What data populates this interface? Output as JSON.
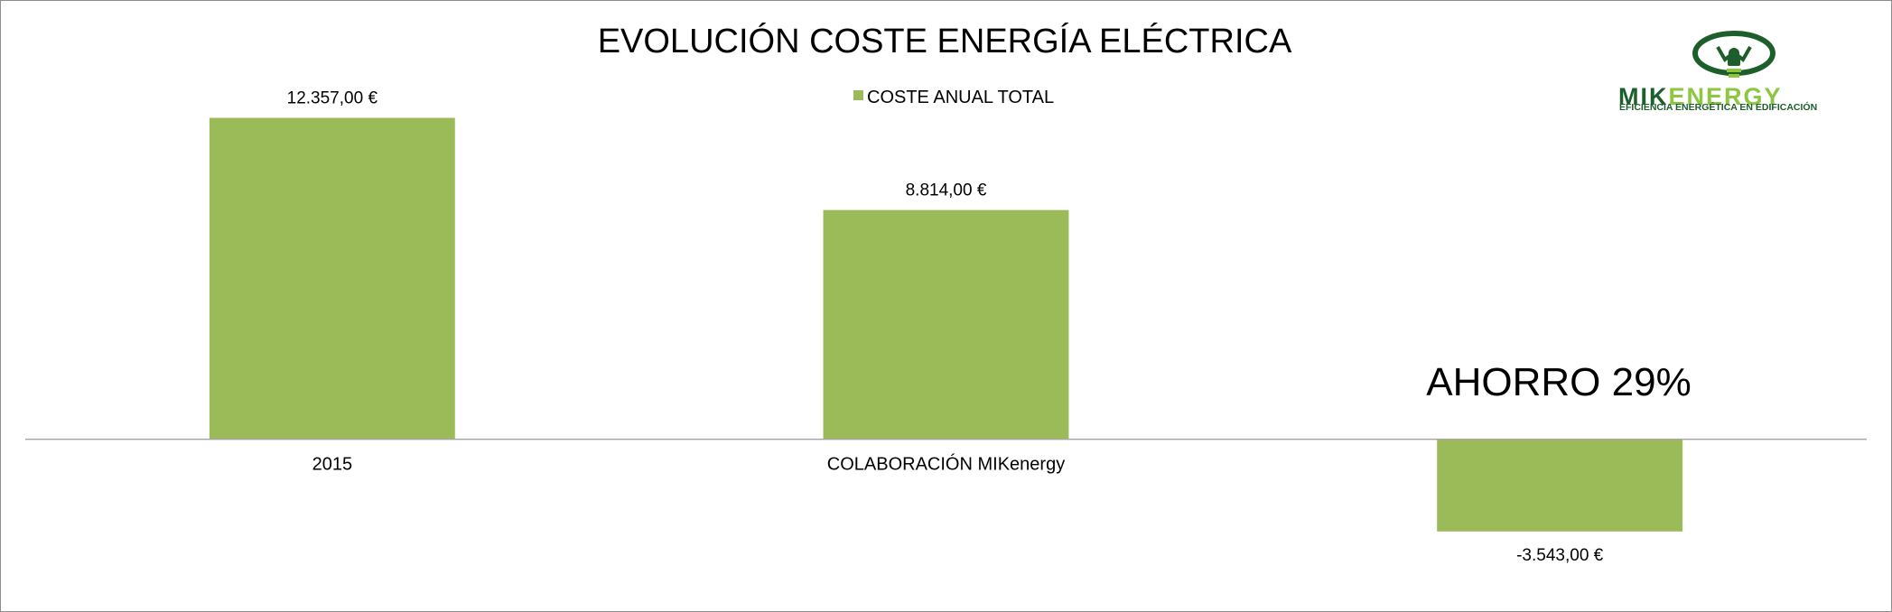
{
  "chart_data": {
    "type": "bar",
    "title": "EVOLUCIÓN COSTE ENERGÍA ELÉCTRICA",
    "categories": [
      "2015",
      "COLABORACIÓN MIKenergy",
      ""
    ],
    "series": [
      {
        "name": "COSTE ANUAL TOTAL",
        "values": [
          12357,
          8814,
          -3543
        ],
        "labels": [
          "12.357,00 €",
          "8.814,00 €",
          "-3.543,00 €"
        ],
        "color": "#9BBB59"
      }
    ],
    "ylim": [
      -6500,
      15500
    ],
    "grid": false,
    "legend_position": "top-center",
    "annotation": "AHORRO 29%"
  },
  "logo": {
    "word_dark": "MIK",
    "word_light": "ENERGY",
    "tagline": "EFICIENCIA ENERGÉTICA EN EDIFICACIÓN",
    "dark_color": "#1d5e2a",
    "light_color": "#8dc63f"
  },
  "colors": {
    "axis": "#a6a6a6",
    "border": "#8c8c8c"
  }
}
